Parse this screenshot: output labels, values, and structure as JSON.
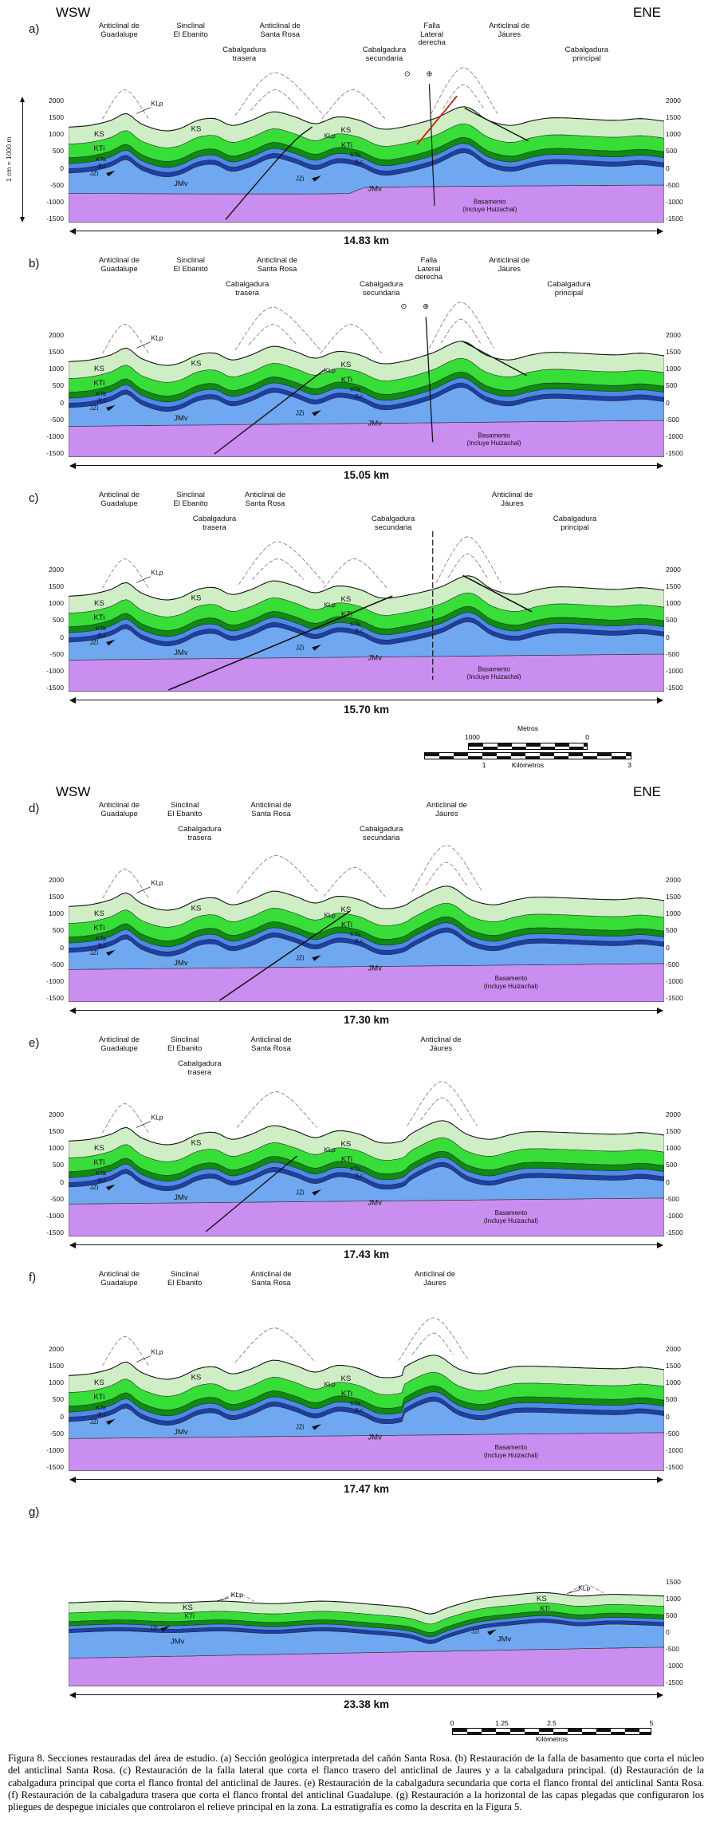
{
  "compass": {
    "left": "WSW",
    "right": "ENE"
  },
  "axis": {
    "scale_note": "1 cm = 1000 m",
    "ticks_full": [
      "2000",
      "1500",
      "1000",
      "500",
      "0",
      "-500",
      "-1000",
      "-1500"
    ],
    "ticks_g": [
      "1500",
      "1000",
      "500",
      "0",
      "-500",
      "-1000",
      "-1500"
    ]
  },
  "labels": {
    "guadalupe": "Anticlinal de\nGuadalupe",
    "ebanito": "Sinclinal\nEl Ebanito",
    "santa_rosa": "Anticlinal de\nSanta Rosa",
    "falla_lateral": "Falla\nLateral\nderecha",
    "jaures": "Anticlinal de\nJáures",
    "cab_trasera": "Cabalgadura\ntrasera",
    "cab_secundaria": "Cabalgadura\nsecundaria",
    "cab_principal": "Cabalgadura\nprincipal"
  },
  "units": {
    "KS": "KS",
    "KTi": "KTi",
    "KTa": "KTa",
    "JLc": "JLc",
    "JZi": "JZi",
    "JMv": "JMv",
    "KLp": "KLp"
  },
  "basement": {
    "line1": "Basamento",
    "line2": "(Incluye Huizachal)"
  },
  "fault_symbols": {
    "away": "⊙",
    "toward": "⊕"
  },
  "unit_colors": {
    "KS": "#cfeec5",
    "KTi": "#38de38",
    "KTa": "#0f8a12",
    "JLc": "#4d8ae8",
    "JZi": "#1d3fa8",
    "JMv": "#6fa8f0",
    "basamento": "#ca8df0",
    "fault_red": "#cc2200"
  },
  "panels": {
    "a": {
      "letter": "a)",
      "length": "14.83 km"
    },
    "b": {
      "letter": "b)",
      "length": "15.05 km"
    },
    "c": {
      "letter": "c)",
      "length": "15.70 km"
    },
    "d": {
      "letter": "d)",
      "length": "17.30 km"
    },
    "e": {
      "letter": "e)",
      "length": "17.43 km"
    },
    "f": {
      "letter": "f)",
      "length": "17.47 km"
    },
    "g": {
      "letter": "g)",
      "length": "23.38 km"
    }
  },
  "scalebar_metros": {
    "title": "Metros",
    "v1": "1000",
    "v2": "0",
    "k1": "1",
    "klabel": "Kilómetros",
    "k2": "3"
  },
  "scalebar_km": {
    "v0": "0",
    "v1": "1.25",
    "v2": "2.5",
    "v3": "5",
    "label": "Kilómetros"
  },
  "caption": "Figura 8.  Secciones restauradas del área de estudio. (a) Sección geológica interpretada del cañón Santa Rosa. (b) Restauración de la falla de basamento que corta el núcleo del anticlinal Santa Rosa. (c) Restauración de la falla lateral que corta el flanco trasero del anticlinal de Jaures y a la cabalgadura principal. (d) Restauración de la cabalgadura principal que corta el flanco frontal del anticlinal de Jaures. (e) Restauración de la cabalgadura secundaria que corta el flanco frontal del anticlinal Santa Rosa. (f) Restauración de la cabalgadura trasera que corta el flanco frontal del anticlinal Guadalupe. (g) Restauración a la horizontal de las capas plegadas que configuraron los pliegues de despegue iniciales que controlaron el relieve principal en la zona. La estratigrafía es como la descrita en la Figura 5."
}
